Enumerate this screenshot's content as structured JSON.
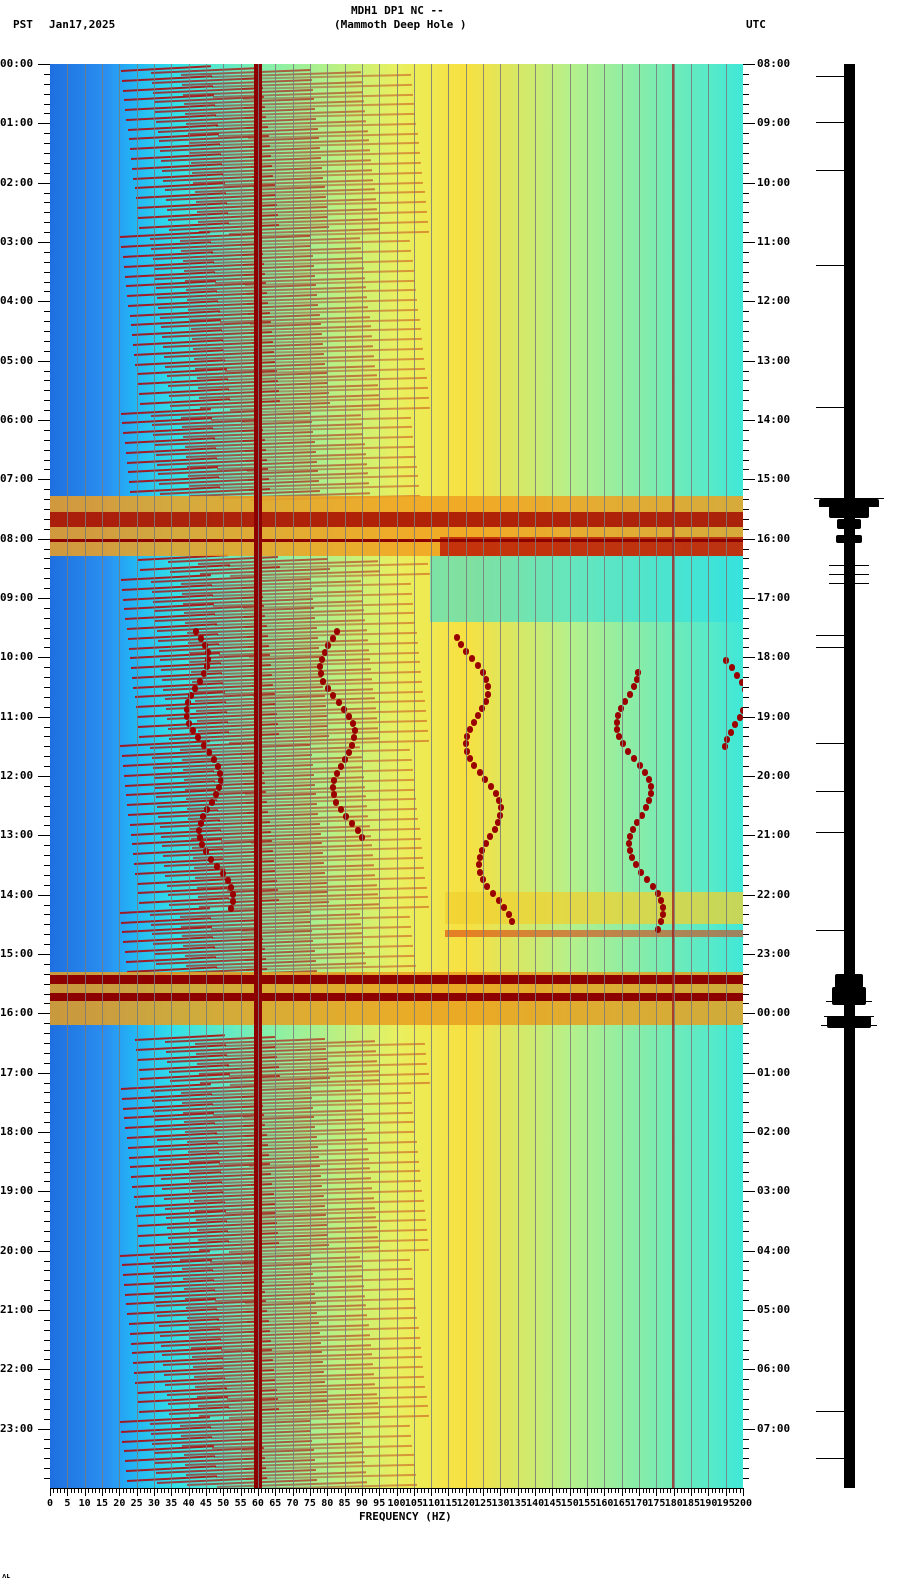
{
  "header": {
    "station_line": "MDH1 DP1 NC --",
    "site_line": "(Mammoth Deep Hole )",
    "left_tz": "PST",
    "date": "Jan17,2025",
    "right_tz": "UTC"
  },
  "footer": {
    "xlabel": "FREQUENCY (HZ)",
    "corner_mark": "ᴧʟ"
  },
  "colors": {
    "low": "#1e6fe0",
    "mid_low": "#33e0e8",
    "mid": "#e8f060",
    "high": "#f8a020",
    "max": "#8c0000",
    "gridline": "#7a7a7a"
  },
  "chart_data": {
    "type": "heatmap",
    "title": "MDH1 DP1 NC -- (Mammoth Deep Hole )",
    "subtitle": "PST Jan17,2025",
    "xlabel": "FREQUENCY (HZ)",
    "ylabel_left": "PST",
    "ylabel_right": "UTC",
    "xlim": [
      0,
      200
    ],
    "x_ticks": [
      0,
      5,
      10,
      15,
      20,
      25,
      30,
      35,
      40,
      45,
      50,
      55,
      60,
      65,
      70,
      75,
      80,
      85,
      90,
      95,
      100,
      105,
      110,
      115,
      120,
      125,
      130,
      135,
      140,
      145,
      150,
      155,
      160,
      165,
      170,
      175,
      180,
      185,
      190,
      195,
      200
    ],
    "y_ticks_left": [
      "00:00",
      "01:00",
      "02:00",
      "03:00",
      "04:00",
      "05:00",
      "06:00",
      "07:00",
      "08:00",
      "09:00",
      "10:00",
      "11:00",
      "12:00",
      "13:00",
      "14:00",
      "15:00",
      "16:00",
      "17:00",
      "18:00",
      "19:00",
      "20:00",
      "21:00",
      "22:00",
      "23:00"
    ],
    "y_ticks_right": [
      "08:00",
      "09:00",
      "10:00",
      "11:00",
      "12:00",
      "13:00",
      "14:00",
      "15:00",
      "16:00",
      "17:00",
      "18:00",
      "19:00",
      "20:00",
      "21:00",
      "22:00",
      "23:00",
      "00:00",
      "01:00",
      "02:00",
      "03:00",
      "04:00",
      "05:00",
      "06:00",
      "07:00"
    ],
    "minor_ticks_per_hour": 6,
    "grid": true,
    "colormap": "jet (blue=low power, dark red=high power)",
    "features": [
      {
        "type": "persistent_line",
        "frequency_hz": 60,
        "note": "strong 60 Hz line across full 24 h"
      },
      {
        "type": "persistent_line",
        "frequency_hz": 180,
        "note": "weak 180 Hz line"
      },
      {
        "type": "repeating_chirps",
        "freq_range_hz": [
          20,
          130
        ],
        "note": "rising harmonic chirps roughly every 10 min, all day"
      },
      {
        "type": "broadband_event",
        "time_pst": "07:20-08:15",
        "note": "strong broadband energy"
      },
      {
        "type": "broadband_event",
        "time_pst": "15:20-16:15",
        "note": "strong broadband energy"
      },
      {
        "type": "wandering_tones",
        "time_pst": "09:30-15:00",
        "freq_range_hz": [
          35,
          200
        ],
        "note": "meandering narrowband tones near 40, 80, 120, 165 Hz"
      },
      {
        "type": "elevated_band",
        "time_pst": "13:55-14:30",
        "freq_range_hz": [
          115,
          200
        ]
      }
    ],
    "seismogram_trace": {
      "present": true,
      "bursts_pst": [
        "07:20-07:50",
        "08:00",
        "08:25-08:50",
        "15:30-15:45",
        "16:05-16:20"
      ]
    }
  }
}
